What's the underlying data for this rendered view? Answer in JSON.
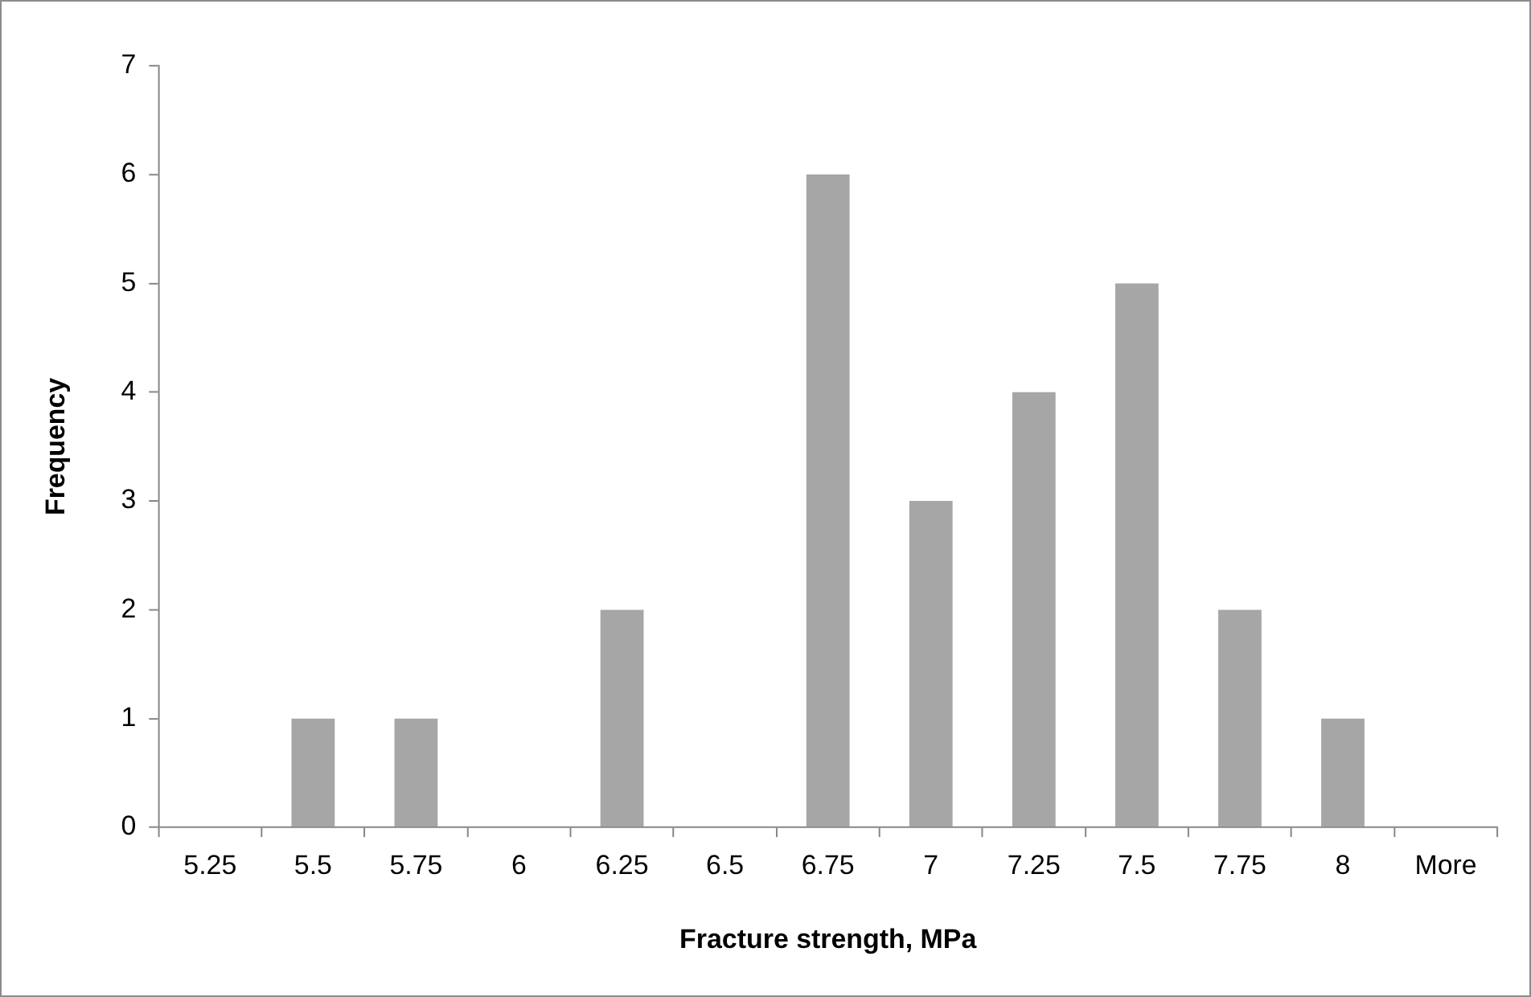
{
  "chart_data": {
    "type": "bar",
    "xlabel": "Fracture strength, MPa",
    "ylabel": "Frequency",
    "categories": [
      "5.25",
      "5.5",
      "5.75",
      "6",
      "6.25",
      "6.5",
      "6.75",
      "7",
      "7.25",
      "7.5",
      "7.75",
      "8",
      "More"
    ],
    "values": [
      0,
      1,
      1,
      0,
      2,
      0,
      6,
      3,
      4,
      5,
      2,
      1,
      0
    ],
    "color": "#a6a6a6",
    "ylim": [
      0,
      7
    ],
    "yticks": [
      0,
      1,
      2,
      3,
      4,
      5,
      6,
      7
    ]
  }
}
